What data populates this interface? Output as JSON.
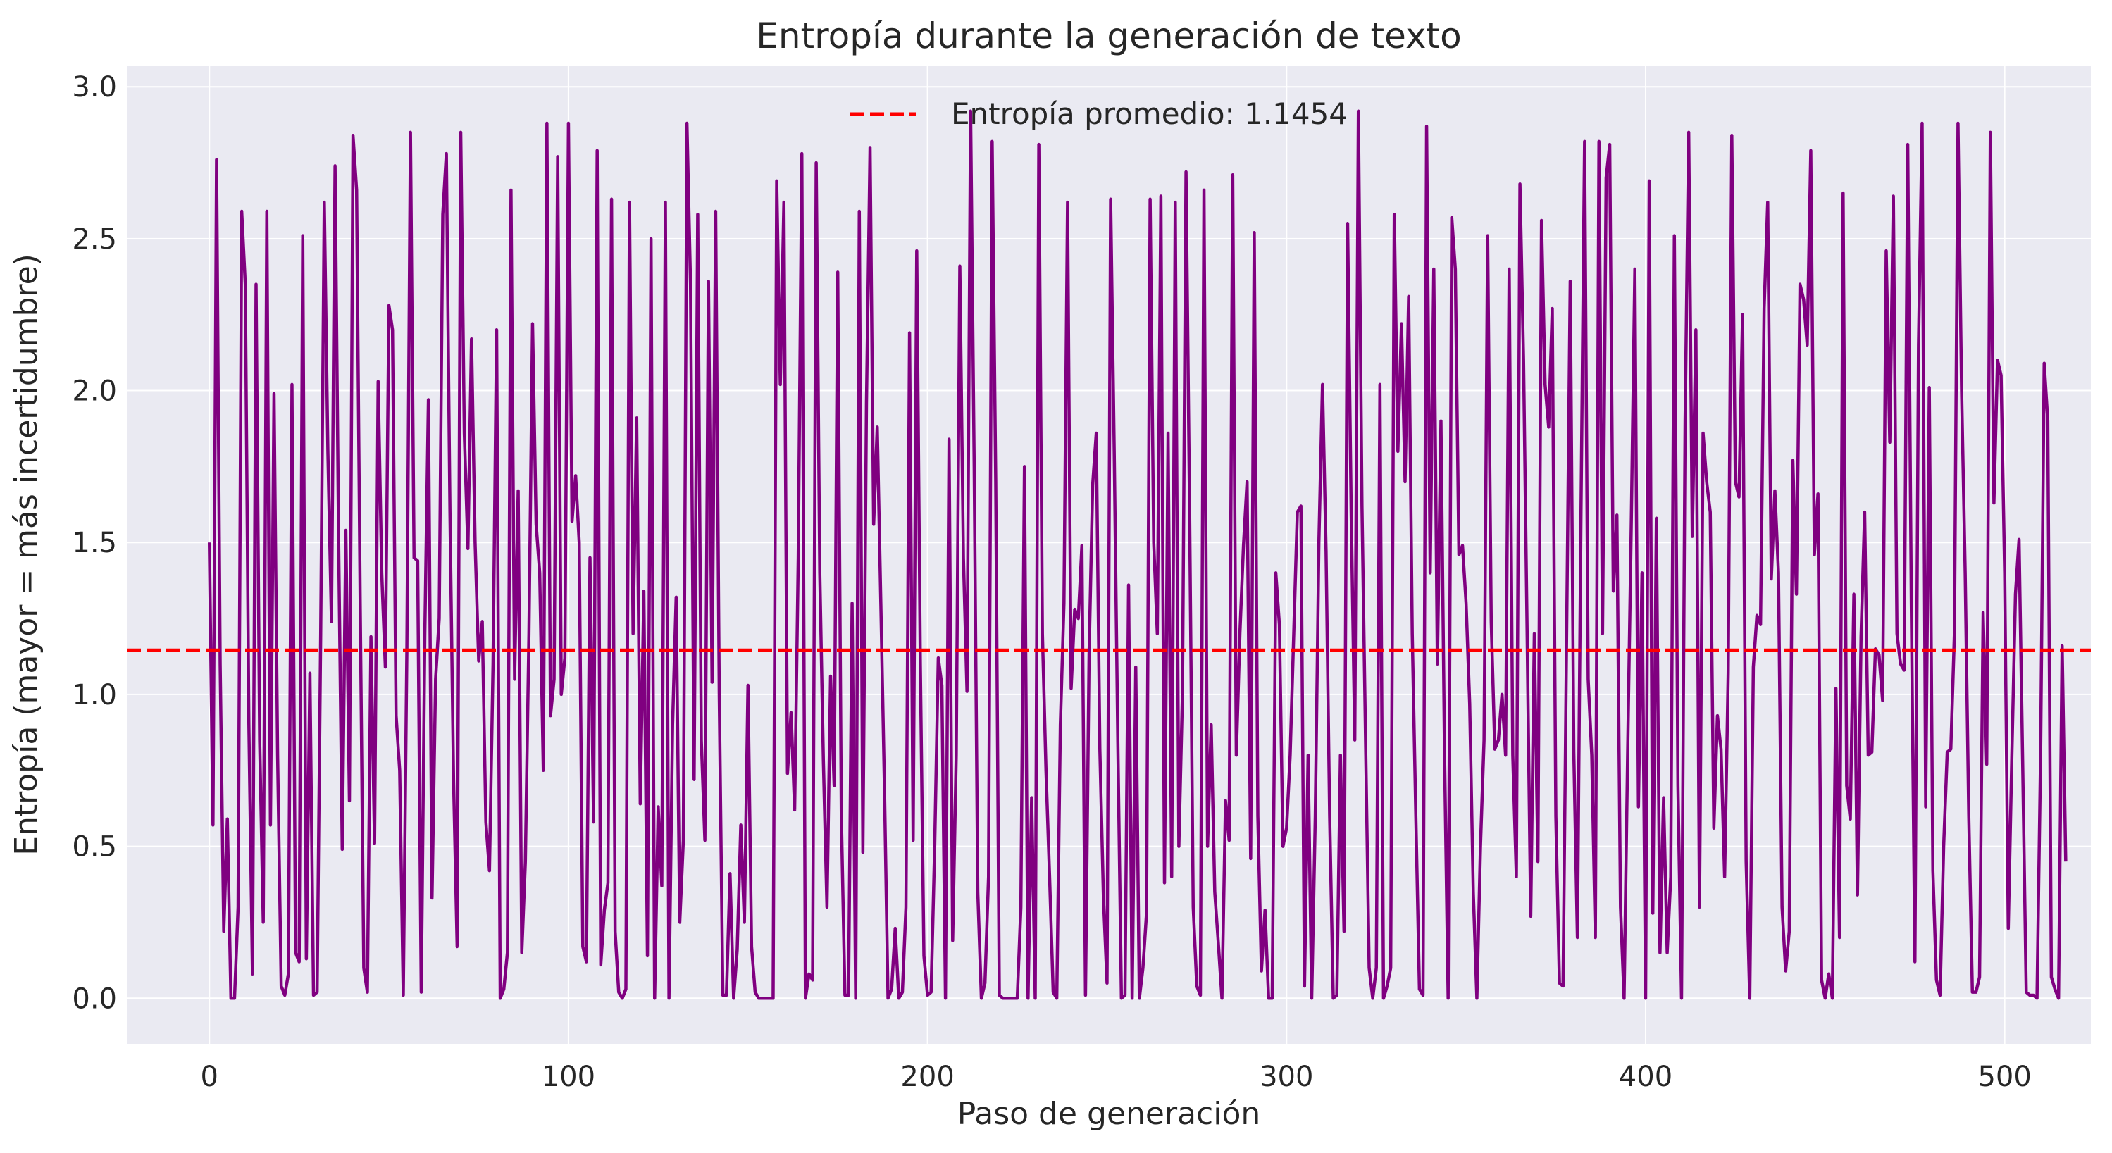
{
  "chart_data": {
    "type": "line",
    "title": "Entropía durante la generación de texto",
    "xlabel": "Paso de generación",
    "ylabel": "Entropía (mayor = más incertidumbre)",
    "xlim": [
      -23,
      524
    ],
    "ylim": [
      -0.15,
      3.07
    ],
    "xticks": [
      0,
      100,
      200,
      300,
      400,
      500
    ],
    "yticks": [
      0.0,
      0.5,
      1.0,
      1.5,
      2.0,
      2.5,
      3.0
    ],
    "xtick_labels": [
      "0",
      "100",
      "200",
      "300",
      "400",
      "500"
    ],
    "ytick_labels": [
      "0.0",
      "0.5",
      "1.0",
      "1.5",
      "2.0",
      "2.5",
      "3.0"
    ],
    "grid": true,
    "legend_position": "top-center",
    "series": [
      {
        "color": "#800080",
        "x_start": 0,
        "x_step": 1,
        "values": [
          1.5,
          0.57,
          2.76,
          1.1,
          0.22,
          0.59,
          0.0,
          0.0,
          0.3,
          2.59,
          2.35,
          0.9,
          0.08,
          2.35,
          0.85,
          0.25,
          2.59,
          0.57,
          1.99,
          0.8,
          0.04,
          0.01,
          0.08,
          2.02,
          0.15,
          0.12,
          2.51,
          0.13,
          1.07,
          0.01,
          0.02,
          1.2,
          2.62,
          1.8,
          1.24,
          2.74,
          1.5,
          0.49,
          1.54,
          0.65,
          2.84,
          2.66,
          1.3,
          0.1,
          0.02,
          1.19,
          0.51,
          2.03,
          1.4,
          1.09,
          2.28,
          2.2,
          0.93,
          0.75,
          0.01,
          1.15,
          2.85,
          1.45,
          1.44,
          0.02,
          1.2,
          1.97,
          0.33,
          1.05,
          1.25,
          2.58,
          2.78,
          1.6,
          0.72,
          0.17,
          2.85,
          1.86,
          1.48,
          2.17,
          1.5,
          1.11,
          1.24,
          0.58,
          0.42,
          1.1,
          2.2,
          0.0,
          0.03,
          0.15,
          2.66,
          1.05,
          1.67,
          0.15,
          0.45,
          1.2,
          2.22,
          1.56,
          1.4,
          0.75,
          2.88,
          0.93,
          1.05,
          2.77,
          1.0,
          1.12,
          2.88,
          1.57,
          1.72,
          1.5,
          0.17,
          0.12,
          1.45,
          0.58,
          2.79,
          0.11,
          0.29,
          0.38,
          2.63,
          0.22,
          0.02,
          0.0,
          0.03,
          2.62,
          1.2,
          1.91,
          0.64,
          1.34,
          0.14,
          2.5,
          0.0,
          0.63,
          0.37,
          2.62,
          0.0,
          0.9,
          1.32,
          0.25,
          0.52,
          2.88,
          2.35,
          0.72,
          2.58,
          0.85,
          0.52,
          2.36,
          1.04,
          2.59,
          1.0,
          0.01,
          0.01,
          0.41,
          0.0,
          0.16,
          0.57,
          0.25,
          1.03,
          0.17,
          0.02,
          0.0,
          0.0,
          0.0,
          0.0,
          0.0,
          2.69,
          2.02,
          2.62,
          0.74,
          0.94,
          0.62,
          1.45,
          2.78,
          0.0,
          0.08,
          0.06,
          2.75,
          1.4,
          0.78,
          0.3,
          1.06,
          0.7,
          2.39,
          0.6,
          0.01,
          0.01,
          1.3,
          0.0,
          2.59,
          0.48,
          1.96,
          2.8,
          1.56,
          1.88,
          1.3,
          0.7,
          0.0,
          0.03,
          0.23,
          0.0,
          0.02,
          0.3,
          2.19,
          0.52,
          2.46,
          1.1,
          0.14,
          0.01,
          0.02,
          0.5,
          1.12,
          1.03,
          0.0,
          1.84,
          0.19,
          0.8,
          2.41,
          1.45,
          1.01,
          2.92,
          1.75,
          0.35,
          0.0,
          0.05,
          0.4,
          2.82,
          1.7,
          0.01,
          0.0,
          0.0,
          0.0,
          0.0,
          0.0,
          0.3,
          1.75,
          0.0,
          0.66,
          0.0,
          2.81,
          1.2,
          0.75,
          0.4,
          0.02,
          0.0,
          0.9,
          1.3,
          2.62,
          1.02,
          1.28,
          1.25,
          1.49,
          0.01,
          1.13,
          1.69,
          1.86,
          0.82,
          0.33,
          0.05,
          2.63,
          1.8,
          0.85,
          0.0,
          0.01,
          1.36,
          0.0,
          1.09,
          0.0,
          0.1,
          0.28,
          2.63,
          1.5,
          1.2,
          2.64,
          0.38,
          1.86,
          0.4,
          2.62,
          0.5,
          1.0,
          2.72,
          1.6,
          0.3,
          0.04,
          0.01,
          2.66,
          0.5,
          0.9,
          0.35,
          0.18,
          0.0,
          0.65,
          0.52,
          2.71,
          0.8,
          1.2,
          1.49,
          1.7,
          0.46,
          2.52,
          0.6,
          0.09,
          0.29,
          0.0,
          0.0,
          1.4,
          1.23,
          0.5,
          0.56,
          0.8,
          1.2,
          1.6,
          1.62,
          0.04,
          0.8,
          0.0,
          0.6,
          1.5,
          2.02,
          1.47,
          0.6,
          0.0,
          0.01,
          0.8,
          0.22,
          2.55,
          1.6,
          0.85,
          2.92,
          1.62,
          0.85,
          0.1,
          0.0,
          0.1,
          2.02,
          0.0,
          0.04,
          0.1,
          2.58,
          1.8,
          2.22,
          1.7,
          2.31,
          1.2,
          0.6,
          0.03,
          0.01,
          2.87,
          1.4,
          2.4,
          1.1,
          1.9,
          0.8,
          0.0,
          2.57,
          2.4,
          1.46,
          1.49,
          1.3,
          0.97,
          0.35,
          0.0,
          0.5,
          0.85,
          2.51,
          1.24,
          0.82,
          0.85,
          1.0,
          0.8,
          2.4,
          0.8,
          0.4,
          2.68,
          2.1,
          1.2,
          0.27,
          1.2,
          0.45,
          2.56,
          2.02,
          1.88,
          2.27,
          0.6,
          0.05,
          0.04,
          1.2,
          2.36,
          0.81,
          0.2,
          1.6,
          2.82,
          1.05,
          0.8,
          0.2,
          2.82,
          1.2,
          2.7,
          2.81,
          1.34,
          1.59,
          0.3,
          0.0,
          0.81,
          1.56,
          2.4,
          0.63,
          1.4,
          0.0,
          2.69,
          0.28,
          1.58,
          0.15,
          0.66,
          0.15,
          0.4,
          2.51,
          0.7,
          0.0,
          1.9,
          2.85,
          1.52,
          2.2,
          0.3,
          1.86,
          1.7,
          1.6,
          0.56,
          0.93,
          0.82,
          0.4,
          1.07,
          2.84,
          1.7,
          1.65,
          2.25,
          0.45,
          0.0,
          1.09,
          1.26,
          1.23,
          2.27,
          2.62,
          1.38,
          1.67,
          1.4,
          0.3,
          0.09,
          0.22,
          1.77,
          1.33,
          2.35,
          2.3,
          2.15,
          2.79,
          1.46,
          1.66,
          0.06,
          0.0,
          0.08,
          0.0,
          1.02,
          0.2,
          2.65,
          0.7,
          0.59,
          1.33,
          0.34,
          1.19,
          1.6,
          0.8,
          0.81,
          1.15,
          1.13,
          0.98,
          2.46,
          1.83,
          2.64,
          1.2,
          1.1,
          1.08,
          2.81,
          1.3,
          0.12,
          2.15,
          2.88,
          0.63,
          2.01,
          0.42,
          0.06,
          0.01,
          0.5,
          0.81,
          0.82,
          1.2,
          2.88,
          2.0,
          1.4,
          0.6,
          0.02,
          0.02,
          0.07,
          1.27,
          0.77,
          2.85,
          1.63,
          2.1,
          2.05,
          1.4,
          0.23,
          0.8,
          1.33,
          1.51,
          0.78,
          0.02,
          0.01,
          0.01,
          0.0,
          0.8,
          2.09,
          1.9,
          0.07,
          0.03,
          0.0,
          1.16,
          0.45
        ]
      },
      {
        "name": "Entropía promedio: 1.1454",
        "type": "hline",
        "value": 1.1454,
        "color": "#ff0000",
        "style": "dashed"
      }
    ]
  }
}
